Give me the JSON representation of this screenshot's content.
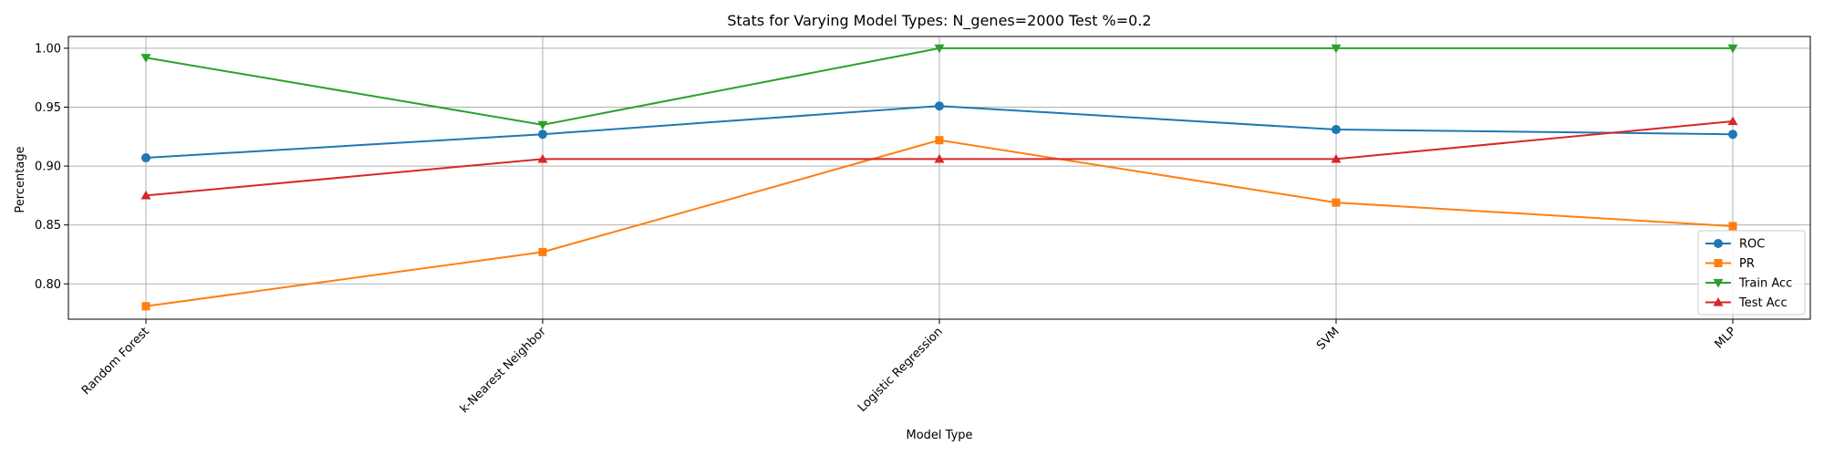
{
  "chart_data": {
    "type": "line",
    "title": "Stats for Varying Model Types: N_genes=2000 Test %=0.2",
    "xlabel": "Model Type",
    "ylabel": "Percentage",
    "categories": [
      "Random Forest",
      "k-Nearest Neighbor",
      "Logistic Regression",
      "SVM",
      "MLP"
    ],
    "ylim": [
      0.77,
      1.01
    ],
    "yticks": [
      "0.80",
      "0.85",
      "0.90",
      "0.95",
      "1.00"
    ],
    "grid": true,
    "legend_position": "lower-right",
    "series": [
      {
        "name": "ROC",
        "color": "#1f77b4",
        "marker": "circle",
        "values": [
          0.907,
          0.927,
          0.951,
          0.931,
          0.927
        ]
      },
      {
        "name": "PR",
        "color": "#ff7f0e",
        "marker": "square",
        "values": [
          0.781,
          0.827,
          0.922,
          0.869,
          0.849
        ]
      },
      {
        "name": "Train Acc",
        "color": "#2ca02c",
        "marker": "triangle-down",
        "values": [
          0.992,
          0.935,
          1.0,
          1.0,
          1.0
        ]
      },
      {
        "name": "Test Acc",
        "color": "#d62728",
        "marker": "triangle-up",
        "values": [
          0.875,
          0.906,
          0.906,
          0.906,
          0.938
        ]
      }
    ]
  }
}
